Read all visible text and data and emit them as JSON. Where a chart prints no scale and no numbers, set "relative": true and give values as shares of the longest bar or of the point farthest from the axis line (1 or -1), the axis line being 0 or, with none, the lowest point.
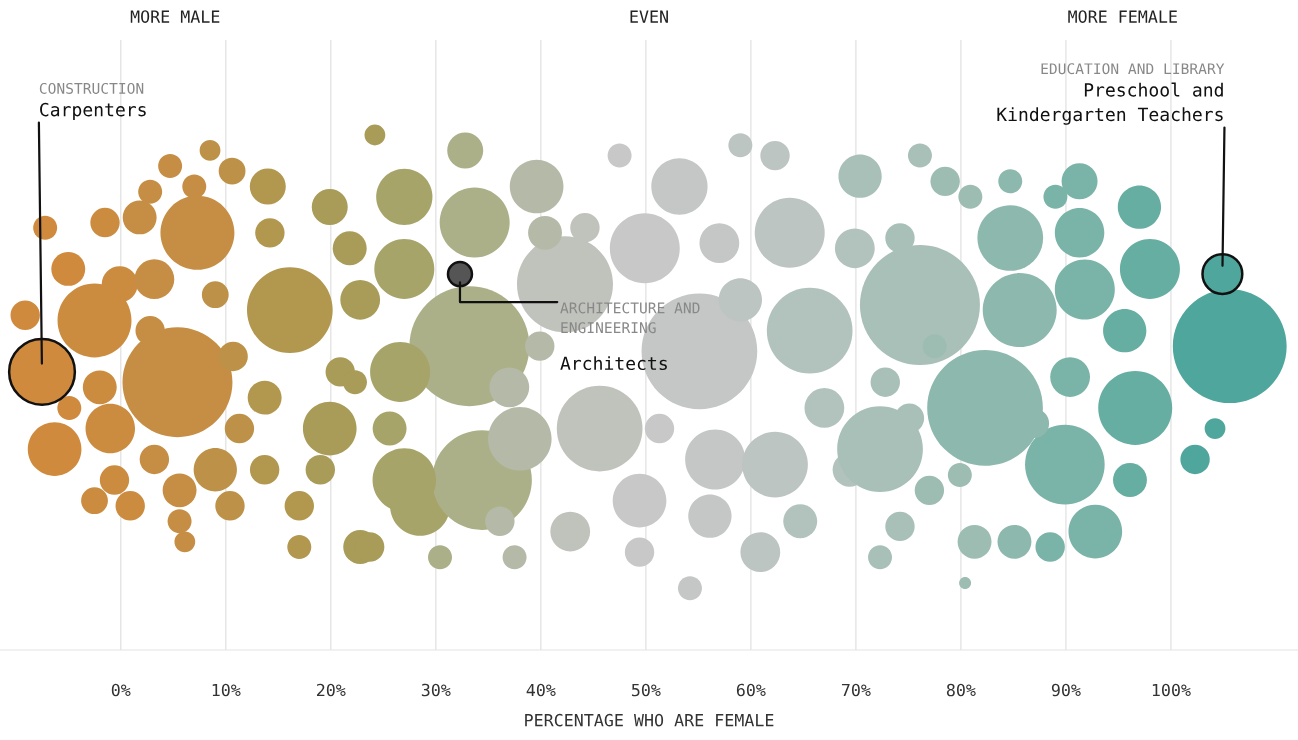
{
  "chart_data": {
    "type": "bubble",
    "relative": true,
    "xlabel": "PERCENTAGE WHO ARE FEMALE",
    "xlim": [
      -11.5,
      112.1
    ],
    "xticks": [
      {
        "value": 0,
        "label": "0%"
      },
      {
        "value": 10,
        "label": "10%"
      },
      {
        "value": 20,
        "label": "20%"
      },
      {
        "value": 30,
        "label": "30%"
      },
      {
        "value": 40,
        "label": "40%"
      },
      {
        "value": 50,
        "label": "50%"
      },
      {
        "value": 60,
        "label": "60%"
      },
      {
        "value": 70,
        "label": "70%"
      },
      {
        "value": 80,
        "label": "80%"
      },
      {
        "value": 90,
        "label": "90%"
      },
      {
        "value": 100,
        "label": "100%"
      }
    ],
    "grid": "x",
    "series": [
      {
        "x": [
          -7.5,
          -9.1,
          -2.5,
          5.4,
          7.3,
          16.1,
          -6.3,
          -1.0,
          -5.0,
          -0.1,
          3.2,
          2.8,
          -2.0,
          -4.9,
          14.2,
          14.0,
          10.6,
          9.0,
          13.7,
          17.0,
          19.0,
          19.9,
          20.9,
          22.8,
          21.8,
          19.9,
          25.6,
          28.5,
          22.3,
          9.0,
          3.2,
          -0.6,
          0.9,
          5.6,
          10.4,
          5.6,
          11.3,
          1.8,
          -1.5,
          -7.2,
          2.8,
          7.0,
          4.7,
          8.5,
          6.1,
          17.0,
          22.8,
          -2.5,
          13.7,
          10.7,
          32.3,
          33.2,
          33.7,
          34.4,
          27.0,
          27.0,
          26.6,
          27.0,
          23.7,
          30.4,
          32.8,
          24.2,
          38.0,
          39.6,
          42.3,
          45.6,
          42.8,
          40.4,
          44.2,
          37.0,
          36.1,
          37.5,
          39.9,
          49.9,
          53.2,
          55.1,
          49.4,
          51.3,
          54.2,
          49.4,
          57.0,
          59.0,
          56.1,
          56.6,
          47.5,
          59.0,
          62.3,
          63.7,
          65.6,
          62.3,
          60.9,
          64.7,
          67.0,
          69.4,
          69.9,
          70.4,
          74.2,
          72.8,
          76.1,
          72.3,
          82.3,
          75.1,
          74.2,
          77.0,
          72.3,
          77.5,
          78.5,
          84.7,
          85.6,
          80.9,
          84.7,
          81.3,
          85.1,
          79.9,
          89.9,
          90.4,
          91.3,
          91.8,
          91.3,
          88.5,
          92.8,
          95.6,
          96.6,
          97.0,
          98.0,
          96.1,
          102.3,
          104.2,
          104.9,
          105.6,
          87.0,
          89.0,
          76.1,
          80.4
        ],
        "values": [
          0.54,
          0.65,
          0.64,
          0.52,
          0.81,
          0.66,
          0.39,
          0.43,
          0.74,
          0.71,
          0.72,
          0.62,
          0.51,
          0.47,
          0.81,
          0.9,
          0.93,
          0.69,
          0.35,
          0.28,
          0.35,
          0.43,
          0.54,
          0.68,
          0.78,
          0.86,
          0.43,
          0.28,
          0.52,
          0.35,
          0.37,
          0.33,
          0.28,
          0.25,
          0.28,
          0.31,
          0.43,
          0.84,
          0.83,
          0.82,
          0.89,
          0.9,
          0.94,
          0.97,
          0.21,
          0.2,
          0.2,
          0.29,
          0.49,
          0.57,
          0.73,
          0.59,
          0.83,
          0.33,
          0.74,
          0.88,
          0.54,
          0.33,
          0.2,
          0.18,
          0.97,
          1.0,
          0.41,
          0.9,
          0.71,
          0.43,
          0.23,
          0.81,
          0.82,
          0.51,
          0.25,
          0.18,
          0.59,
          0.78,
          0.9,
          0.58,
          0.29,
          0.43,
          0.12,
          0.19,
          0.79,
          0.68,
          0.26,
          0.37,
          0.96,
          0.98,
          0.96,
          0.81,
          0.62,
          0.36,
          0.19,
          0.25,
          0.47,
          0.35,
          0.78,
          0.92,
          0.8,
          0.52,
          0.67,
          0.39,
          0.47,
          0.45,
          0.24,
          0.31,
          0.18,
          0.59,
          0.91,
          0.8,
          0.66,
          0.88,
          0.91,
          0.21,
          0.21,
          0.34,
          0.36,
          0.53,
          0.81,
          0.7,
          0.91,
          0.2,
          0.23,
          0.62,
          0.47,
          0.86,
          0.74,
          0.33,
          0.37,
          0.43,
          0.73,
          0.59,
          0.44,
          0.88,
          0.96,
          0.13
        ],
        "sizes": [
          0.3,
          0.06,
          0.38,
          0.84,
          0.38,
          0.51,
          0.2,
          0.17,
          0.08,
          0.09,
          0.11,
          0.06,
          0.08,
          0.04,
          0.06,
          0.09,
          0.05,
          0.05,
          0.06,
          0.06,
          0.06,
          0.2,
          0.06,
          0.11,
          0.08,
          0.09,
          0.08,
          0.25,
          0.04,
          0.13,
          0.06,
          0.06,
          0.06,
          0.04,
          0.06,
          0.08,
          0.06,
          0.08,
          0.06,
          0.04,
          0.04,
          0.04,
          0.04,
          0.03,
          0.03,
          0.04,
          0.08,
          0.05,
          0.08,
          0.06,
          0.04,
          1.0,
          0.34,
          0.69,
          0.25,
          0.22,
          0.25,
          0.28,
          0.06,
          0.04,
          0.09,
          0.03,
          0.28,
          0.2,
          0.64,
          0.51,
          0.11,
          0.08,
          0.06,
          0.11,
          0.06,
          0.04,
          0.06,
          0.34,
          0.22,
          0.93,
          0.2,
          0.06,
          0.04,
          0.06,
          0.11,
          0.13,
          0.13,
          0.25,
          0.04,
          0.04,
          0.06,
          0.34,
          0.51,
          0.3,
          0.11,
          0.08,
          0.11,
          0.08,
          0.11,
          0.13,
          0.06,
          0.06,
          1.0,
          0.51,
          0.93,
          0.06,
          0.06,
          0.06,
          0.04,
          0.04,
          0.06,
          0.3,
          0.38,
          0.04,
          0.04,
          0.08,
          0.08,
          0.04,
          0.44,
          0.11,
          0.17,
          0.25,
          0.09,
          0.06,
          0.2,
          0.13,
          0.38,
          0.13,
          0.25,
          0.08,
          0.06,
          0.03,
          0.11,
          0.9,
          0.06,
          0.04,
          0.04,
          0.01
        ],
        "colors": [
          "#d08a3e",
          "#d08a3e",
          "#cc8c40",
          "#c68e44",
          "#c68e44",
          "#b2974f",
          "#d08a3e",
          "#cc8c40",
          "#d08a3e",
          "#cc8c40",
          "#c68e44",
          "#c68e44",
          "#cc8c40",
          "#d08a3e",
          "#b2974f",
          "#b2974f",
          "#bd9248",
          "#bd9248",
          "#b2974f",
          "#b2974f",
          "#a99b58",
          "#a99b58",
          "#a99b58",
          "#a99b58",
          "#a99b58",
          "#a99b58",
          "#a6a469",
          "#a6a469",
          "#a99b58",
          "#bd9248",
          "#c68e44",
          "#cc8c40",
          "#cc8c40",
          "#c68e44",
          "#bd9248",
          "#c68e44",
          "#bd9248",
          "#c68e44",
          "#cc8c40",
          "#d08a3e",
          "#c68e44",
          "#c68e44",
          "#c68e44",
          "#bd9248",
          "#c68e44",
          "#b2974f",
          "#a99b58",
          "#cc8c40",
          "#b2974f",
          "#bd9248",
          "#555555",
          "#abb088",
          "#abb088",
          "#abb088",
          "#a6a469",
          "#a6a469",
          "#a6a469",
          "#a6a469",
          "#a99b58",
          "#abb088",
          "#abb088",
          "#a99b58",
          "#b5baa8",
          "#b5baa8",
          "#c0c2bc",
          "#c0c2bc",
          "#c0c2bc",
          "#b5baa8",
          "#c0c2bc",
          "#b5baa8",
          "#b5baa8",
          "#b5baa8",
          "#b5baa8",
          "#c8c8c8",
          "#c4c7c6",
          "#c4c7c6",
          "#c8c8c8",
          "#c8c8c8",
          "#c4c7c6",
          "#c8c8c8",
          "#c4c7c6",
          "#bcc5c2",
          "#c4c7c6",
          "#c4c7c6",
          "#c8c8c8",
          "#bcc5c2",
          "#bcc5c2",
          "#bcc5c2",
          "#b2c3bd",
          "#bcc5c2",
          "#bcc5c2",
          "#b2c3bd",
          "#b2c3bd",
          "#b2c3bd",
          "#b2c3bd",
          "#a8c0b8",
          "#a8c0b8",
          "#a8c0b8",
          "#a8c0b8",
          "#a8c0b8",
          "#8db8ae",
          "#a8c0b8",
          "#a8c0b8",
          "#9dbdb3",
          "#a8c0b8",
          "#9dbdb3",
          "#9dbdb3",
          "#8db8ae",
          "#8db8ae",
          "#9dbdb3",
          "#8db8ae",
          "#9dbdb3",
          "#8db8ae",
          "#9dbdb3",
          "#7ab3a8",
          "#7ab3a8",
          "#7ab3a8",
          "#7ab3a8",
          "#7ab3a8",
          "#7ab3a8",
          "#7ab3a8",
          "#66ada2",
          "#66ada2",
          "#66ada2",
          "#66ada2",
          "#66ada2",
          "#4fa69c",
          "#4fa69c",
          "#4fa69c",
          "#4fa69c",
          "#8db8ae",
          "#7ab3a8",
          "#a8c0b8",
          "#9dbdb3"
        ]
      }
    ],
    "annotations": [
      "MORE MALE",
      "EVEN",
      "MORE FEMALE",
      "CONSTRUCTION",
      {
        "text": "Carpenters",
        "x": -7.5,
        "y": 0.54
      },
      "EDUCATION AND LIBRARY",
      {
        "text": "Preschool and\nKindergarten Teachers",
        "x": 104.9,
        "y": 0.73
      },
      {
        "text": "ARCHITECTURE AND\nENGINEERING",
        "x": 32.3,
        "y": 0.73
      },
      "Architects"
    ]
  }
}
